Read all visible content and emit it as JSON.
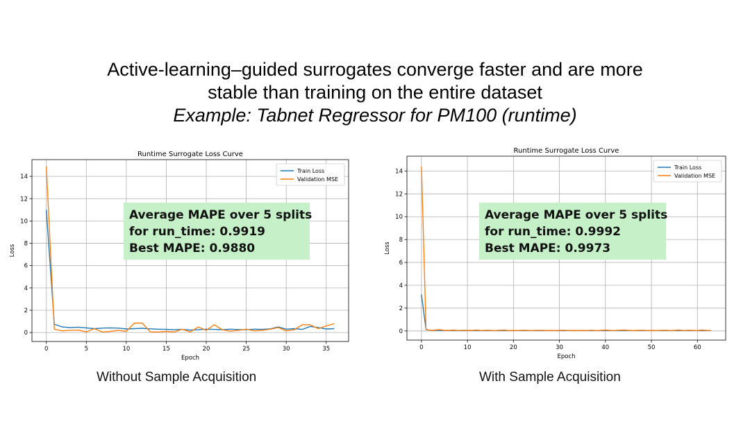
{
  "slide": {
    "title_line1": "Active-learning–guided surrogates converge faster and are more",
    "title_line2": "stable than training on the entire dataset",
    "subtitle": "Example: Tabnet Regressor for PM100 (runtime)"
  },
  "colors": {
    "train": "#1f77b4",
    "validation": "#ff7f0e",
    "callout_bg": "#c5f0c8"
  },
  "left_panel": {
    "caption": "Without Sample Acquisition",
    "callout": {
      "line1": "Average MAPE over 5 splits",
      "line2": "for run_time: 0.9919",
      "line3": "Best MAPE: 0.9880"
    }
  },
  "right_panel": {
    "caption": "With Sample Acquisition",
    "callout": {
      "line1": "Average MAPE over 5 splits",
      "line2": "for run_time: 0.9992",
      "line3": "Best MAPE: 0.9973"
    }
  },
  "chart_data": [
    {
      "type": "line",
      "title": "Runtime Surrogate Loss Curve",
      "xlabel": "Epoch",
      "ylabel": "Loss",
      "xlim": [
        -1.8,
        37.8
      ],
      "ylim": [
        -0.8,
        15.5
      ],
      "xticks": [
        0,
        5,
        10,
        15,
        20,
        25,
        30,
        35
      ],
      "yticks": [
        0,
        2,
        4,
        6,
        8,
        10,
        12,
        14
      ],
      "grid": true,
      "legend": "top-right",
      "series": [
        {
          "name": "Train Loss",
          "x": [
            0,
            1,
            2,
            3,
            4,
            5,
            6,
            7,
            8,
            9,
            10,
            11,
            12,
            13,
            14,
            15,
            16,
            17,
            18,
            19,
            20,
            21,
            22,
            23,
            24,
            25,
            26,
            27,
            28,
            29,
            30,
            31,
            32,
            33,
            34,
            35,
            36
          ],
          "values": [
            11.0,
            0.75,
            0.5,
            0.45,
            0.48,
            0.42,
            0.35,
            0.4,
            0.42,
            0.4,
            0.32,
            0.35,
            0.38,
            0.33,
            0.3,
            0.28,
            0.25,
            0.28,
            0.22,
            0.25,
            0.3,
            0.28,
            0.26,
            0.3,
            0.27,
            0.25,
            0.3,
            0.28,
            0.33,
            0.5,
            0.3,
            0.35,
            0.28,
            0.55,
            0.45,
            0.32,
            0.35
          ]
        },
        {
          "name": "Validation MSE",
          "x": [
            0,
            1,
            2,
            3,
            4,
            5,
            6,
            7,
            8,
            9,
            10,
            11,
            12,
            13,
            14,
            15,
            16,
            17,
            18,
            19,
            20,
            21,
            22,
            23,
            24,
            25,
            26,
            27,
            28,
            29,
            30,
            31,
            32,
            33,
            34,
            35,
            36
          ],
          "values": [
            14.9,
            0.3,
            0.15,
            0.2,
            0.22,
            0.05,
            0.35,
            0.05,
            0.1,
            0.2,
            0.1,
            0.85,
            0.85,
            0.05,
            0.05,
            0.1,
            0.05,
            0.3,
            0.05,
            0.5,
            0.2,
            0.7,
            0.25,
            0.12,
            0.2,
            0.3,
            0.15,
            0.2,
            0.3,
            0.45,
            0.15,
            0.25,
            0.7,
            0.7,
            0.35,
            0.6,
            0.8
          ]
        }
      ]
    },
    {
      "type": "line",
      "title": "Runtime Surrogate Loss Curve",
      "xlabel": "Epoch",
      "ylabel": "Loss",
      "xlim": [
        -3.15,
        66.15
      ],
      "ylim": [
        -0.8,
        15.3
      ],
      "xticks": [
        0,
        10,
        20,
        30,
        40,
        50,
        60
      ],
      "yticks": [
        0,
        2,
        4,
        6,
        8,
        10,
        12,
        14
      ],
      "grid": true,
      "legend": "top-right",
      "series": [
        {
          "name": "Train Loss",
          "x": [
            0,
            1,
            2,
            3,
            4,
            5,
            6,
            7,
            8,
            9,
            10,
            11,
            12,
            13,
            14,
            15,
            16,
            17,
            18,
            19,
            20,
            21,
            22,
            23,
            24,
            25,
            26,
            27,
            28,
            29,
            30,
            31,
            32,
            33,
            34,
            35,
            36,
            37,
            38,
            39,
            40,
            41,
            42,
            43,
            44,
            45,
            46,
            47,
            48,
            49,
            50,
            51,
            52,
            53,
            54,
            55,
            56,
            57,
            58,
            59,
            60,
            61,
            62,
            63
          ],
          "values": [
            3.2,
            0.12,
            0.06,
            0.05,
            0.05,
            0.04,
            0.04,
            0.04,
            0.03,
            0.03,
            0.03,
            0.03,
            0.03,
            0.03,
            0.03,
            0.03,
            0.03,
            0.03,
            0.03,
            0.03,
            0.03,
            0.03,
            0.03,
            0.03,
            0.03,
            0.03,
            0.03,
            0.03,
            0.03,
            0.03,
            0.03,
            0.03,
            0.03,
            0.03,
            0.03,
            0.03,
            0.03,
            0.03,
            0.03,
            0.03,
            0.03,
            0.03,
            0.03,
            0.03,
            0.03,
            0.03,
            0.03,
            0.03,
            0.03,
            0.03,
            0.03,
            0.03,
            0.03,
            0.03,
            0.03,
            0.03,
            0.03,
            0.03,
            0.03,
            0.03,
            0.03,
            0.03,
            0.03,
            0.03
          ]
        },
        {
          "name": "Validation MSE",
          "x": [
            0,
            1,
            2,
            3,
            4,
            5,
            6,
            7,
            8,
            9,
            10,
            11,
            12,
            13,
            14,
            15,
            16,
            17,
            18,
            19,
            20,
            21,
            22,
            23,
            24,
            25,
            26,
            27,
            28,
            29,
            30,
            31,
            32,
            33,
            34,
            35,
            36,
            37,
            38,
            39,
            40,
            41,
            42,
            43,
            44,
            45,
            46,
            47,
            48,
            49,
            50,
            51,
            52,
            53,
            54,
            55,
            56,
            57,
            58,
            59,
            60,
            61,
            62,
            63
          ],
          "values": [
            14.4,
            0.15,
            0.05,
            0.08,
            0.12,
            0.05,
            0.05,
            0.08,
            0.04,
            0.06,
            0.05,
            0.05,
            0.08,
            0.04,
            0.06,
            0.05,
            0.04,
            0.06,
            0.08,
            0.04,
            0.05,
            0.04,
            0.06,
            0.05,
            0.04,
            0.05,
            0.06,
            0.04,
            0.05,
            0.04,
            0.05,
            0.06,
            0.04,
            0.05,
            0.04,
            0.05,
            0.04,
            0.06,
            0.04,
            0.05,
            0.08,
            0.05,
            0.04,
            0.06,
            0.08,
            0.05,
            0.04,
            0.05,
            0.06,
            0.04,
            0.05,
            0.04,
            0.05,
            0.06,
            0.04,
            0.05,
            0.08,
            0.04,
            0.06,
            0.05,
            0.04,
            0.08,
            0.05,
            0.04
          ]
        }
      ]
    }
  ]
}
